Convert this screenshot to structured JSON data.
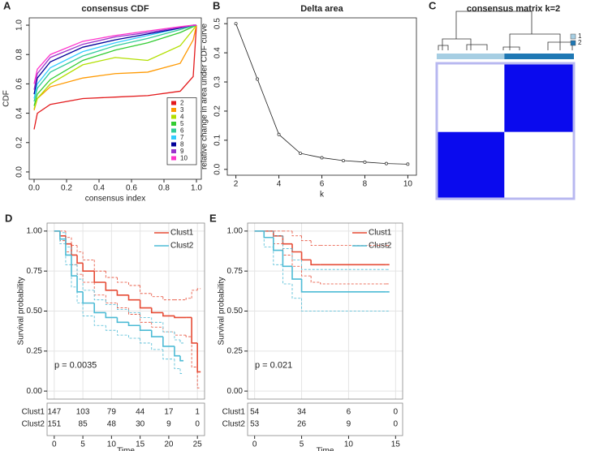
{
  "chart_data": [
    {
      "type": "line",
      "panel": "A",
      "title": "consensus CDF",
      "xlabel": "consensus index",
      "ylabel": "CDF",
      "x": [
        0,
        0.02,
        0.1,
        0.3,
        0.5,
        0.7,
        0.9,
        0.98,
        1
      ],
      "series": [
        {
          "name": "2",
          "color": "#e31a1c",
          "values": [
            0.29,
            0.4,
            0.46,
            0.5,
            0.51,
            0.52,
            0.55,
            0.65,
            1
          ]
        },
        {
          "name": "3",
          "color": "#ff9900",
          "values": [
            0.42,
            0.5,
            0.58,
            0.64,
            0.67,
            0.68,
            0.74,
            0.9,
            1
          ]
        },
        {
          "name": "4",
          "color": "#b2df00",
          "values": [
            0.43,
            0.5,
            0.6,
            0.73,
            0.78,
            0.76,
            0.86,
            0.97,
            1
          ]
        },
        {
          "name": "5",
          "color": "#33cc33",
          "values": [
            0.45,
            0.53,
            0.63,
            0.76,
            0.83,
            0.88,
            0.95,
            0.99,
            1
          ]
        },
        {
          "name": "6",
          "color": "#33cc99",
          "values": [
            0.48,
            0.57,
            0.68,
            0.79,
            0.86,
            0.91,
            0.97,
            0.995,
            1
          ]
        },
        {
          "name": "7",
          "color": "#33ccff",
          "values": [
            0.5,
            0.6,
            0.71,
            0.82,
            0.88,
            0.93,
            0.98,
            1,
            1
          ]
        },
        {
          "name": "8",
          "color": "#000099",
          "values": [
            0.53,
            0.64,
            0.75,
            0.85,
            0.9,
            0.94,
            0.98,
            1,
            1
          ]
        },
        {
          "name": "9",
          "color": "#9933cc",
          "values": [
            0.56,
            0.67,
            0.78,
            0.87,
            0.92,
            0.95,
            0.985,
            1,
            1
          ]
        },
        {
          "name": "10",
          "color": "#ff33cc",
          "values": [
            0.6,
            0.7,
            0.8,
            0.89,
            0.93,
            0.96,
            0.99,
            1,
            1
          ]
        }
      ],
      "xlim": [
        -0.03,
        1.03
      ],
      "ylim": [
        -0.05,
        1.05
      ],
      "xticks": [
        {
          "value": 0,
          "label": "0.0"
        },
        {
          "value": 0.2,
          "label": "0.2"
        },
        {
          "value": 0.4,
          "label": "0.4"
        },
        {
          "value": 0.6,
          "label": "0.6"
        },
        {
          "value": 0.8,
          "label": "0.8"
        },
        {
          "value": 1,
          "label": "1.0"
        }
      ],
      "yticks": [
        {
          "value": 0,
          "label": "0.0"
        },
        {
          "value": 0.2,
          "label": "0.2"
        },
        {
          "value": 0.4,
          "label": "0.4"
        },
        {
          "value": 0.6,
          "label": "0.6"
        },
        {
          "value": 0.8,
          "label": "0.8"
        },
        {
          "value": 1,
          "label": "1.0"
        }
      ],
      "legend": "lower right",
      "grid": false
    },
    {
      "type": "line",
      "panel": "B",
      "title": "Delta area",
      "xlabel": "k",
      "ylabel": "relative change in area under CDF curve",
      "x": [
        2,
        3,
        4,
        5,
        6,
        7,
        8,
        9,
        10
      ],
      "series": [
        {
          "color": "#222222",
          "values": [
            0.5,
            0.31,
            0.12,
            0.055,
            0.04,
            0.03,
            0.025,
            0.02,
            0.018
          ]
        }
      ],
      "markers": true,
      "xlim": [
        1.6,
        10.4
      ],
      "ylim": [
        -0.02,
        0.52
      ],
      "xticks": [
        2,
        4,
        6,
        8,
        10
      ],
      "yticks": [
        {
          "value": 0,
          "label": "0.0"
        },
        {
          "value": 0.1,
          "label": "0.1"
        },
        {
          "value": 0.2,
          "label": "0.2"
        },
        {
          "value": 0.3,
          "label": "0.3"
        },
        {
          "value": 0.4,
          "label": "0.4"
        },
        {
          "value": 0.5,
          "label": "0.5"
        }
      ],
      "grid": false
    },
    {
      "type": "heatmap",
      "panel": "C",
      "title": "consensus matrix k=2",
      "clusters": [
        {
          "name": "1",
          "color": "#a6cee3",
          "size": 147
        },
        {
          "name": "2",
          "color": "#1f78b4",
          "size": 151
        }
      ],
      "matrix": [
        [
          1,
          0
        ],
        [
          0,
          1
        ]
      ],
      "colorscale": [
        "#ffffff",
        "#0a0aee"
      ]
    },
    {
      "type": "survival",
      "panel": "D",
      "xlabel": "Time",
      "ylabel": "Survival probability",
      "annotation": "p = 0.0035",
      "series": [
        {
          "name": "Clust1",
          "color": "#e64b35",
          "x": [
            0,
            1,
            2,
            3,
            4,
            5,
            7,
            9,
            11,
            13,
            15,
            17,
            19,
            21,
            23,
            24,
            25
          ],
          "values": [
            1,
            0.97,
            0.92,
            0.85,
            0.8,
            0.75,
            0.68,
            0.63,
            0.6,
            0.57,
            0.52,
            0.49,
            0.47,
            0.46,
            0.46,
            0.3,
            0.12
          ],
          "lower": [
            1,
            0.94,
            0.87,
            0.79,
            0.73,
            0.68,
            0.6,
            0.55,
            0.52,
            0.48,
            0.43,
            0.4,
            0.37,
            0.35,
            0.34,
            0.15,
            0.02
          ],
          "upper": [
            1,
            1,
            0.96,
            0.91,
            0.87,
            0.82,
            0.75,
            0.71,
            0.68,
            0.66,
            0.61,
            0.59,
            0.57,
            0.57,
            0.58,
            0.63,
            0.64
          ]
        },
        {
          "name": "Clust2",
          "color": "#4dbbd5",
          "x": [
            0,
            1,
            2,
            3,
            4,
            5,
            7,
            9,
            11,
            13,
            15,
            17,
            19,
            21,
            22
          ],
          "values": [
            1,
            0.95,
            0.85,
            0.72,
            0.62,
            0.55,
            0.49,
            0.46,
            0.43,
            0.41,
            0.38,
            0.34,
            0.28,
            0.22,
            0.19
          ],
          "lower": [
            1,
            0.92,
            0.79,
            0.65,
            0.55,
            0.47,
            0.41,
            0.38,
            0.35,
            0.33,
            0.3,
            0.26,
            0.2,
            0.14,
            0.11
          ],
          "upper": [
            1,
            0.99,
            0.9,
            0.79,
            0.7,
            0.63,
            0.57,
            0.54,
            0.51,
            0.49,
            0.46,
            0.43,
            0.37,
            0.32,
            0.3
          ]
        }
      ],
      "risk_table": [
        [
          147,
          103,
          79,
          44,
          17,
          1
        ],
        [
          151,
          85,
          48,
          30,
          9,
          0
        ]
      ],
      "xlim": [
        -1.25,
        26.25
      ],
      "ylim": [
        -0.05,
        1.05
      ],
      "xticks": [
        0,
        5,
        10,
        15,
        20,
        25
      ],
      "yticks": [
        {
          "value": 0,
          "label": "0.00"
        },
        {
          "value": 0.25,
          "label": "0.25"
        },
        {
          "value": 0.5,
          "label": "0.50"
        },
        {
          "value": 0.75,
          "label": "0.75"
        },
        {
          "value": 1,
          "label": "1.00"
        }
      ],
      "legend": "upper right",
      "grid": true
    },
    {
      "type": "survival",
      "panel": "E",
      "xlabel": "Time",
      "ylabel": "Survival probability",
      "annotation": "p = 0.021",
      "series": [
        {
          "name": "Clust1",
          "color": "#e64b35",
          "x": [
            0,
            2,
            3,
            4,
            5,
            6,
            7,
            14
          ],
          "values": [
            1,
            0.97,
            0.92,
            0.87,
            0.82,
            0.79,
            0.79,
            0.79
          ],
          "lower": [
            1,
            0.92,
            0.85,
            0.78,
            0.72,
            0.68,
            0.67,
            0.67
          ],
          "upper": [
            1,
            1,
            1,
            0.97,
            0.94,
            0.91,
            0.91,
            0.91
          ]
        },
        {
          "name": "Clust2",
          "color": "#4dbbd5",
          "x": [
            0,
            1,
            2,
            3,
            4,
            5,
            14
          ],
          "values": [
            1,
            0.96,
            0.88,
            0.78,
            0.7,
            0.62,
            0.62
          ],
          "lower": [
            1,
            0.9,
            0.79,
            0.67,
            0.58,
            0.5,
            0.5
          ],
          "upper": [
            1,
            1,
            0.97,
            0.89,
            0.82,
            0.76,
            0.76
          ]
        }
      ],
      "risk_table": [
        [
          54,
          34,
          6,
          0
        ],
        [
          53,
          26,
          9,
          0
        ]
      ],
      "xlim": [
        -0.75,
        15.75
      ],
      "ylim": [
        -0.05,
        1.05
      ],
      "xticks": [
        0,
        5,
        10,
        15
      ],
      "yticks": [
        {
          "value": 0,
          "label": "0.00"
        },
        {
          "value": 0.25,
          "label": "0.25"
        },
        {
          "value": 0.5,
          "label": "0.50"
        },
        {
          "value": 0.75,
          "label": "0.75"
        },
        {
          "value": 1,
          "label": "1.00"
        }
      ],
      "legend": "upper right",
      "grid": true
    }
  ]
}
